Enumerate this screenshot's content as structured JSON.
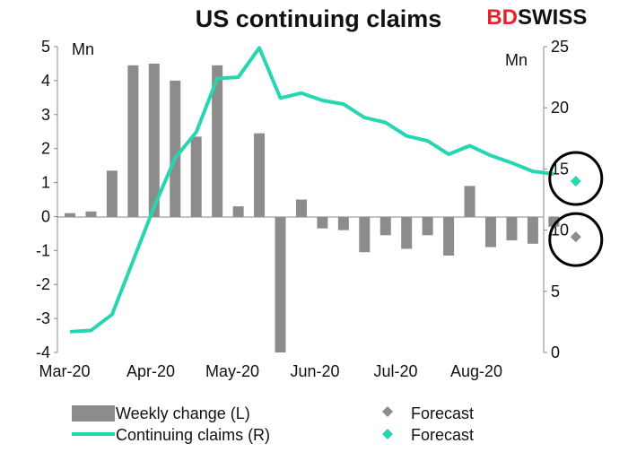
{
  "brand": {
    "logo_text": "BDSWISS",
    "logo_part1": "BD",
    "logo_part2": "SWISS",
    "accent_color": "#e8232b"
  },
  "chart_data": {
    "type": "bar+line",
    "title": "US continuing claims",
    "left_axis": {
      "unit": "Mn",
      "ticks": [
        "5",
        "4",
        "3",
        "2",
        "1",
        "0",
        "-1",
        "-2",
        "-3",
        "-4"
      ],
      "ylim": [
        -4,
        5
      ]
    },
    "right_axis": {
      "unit": "Mn",
      "ticks": [
        "25",
        "20",
        "15",
        "10",
        "5",
        "0"
      ],
      "ylim": [
        0,
        25
      ]
    },
    "x_ticks": [
      "Mar-20",
      "Apr-20",
      "May-20",
      "Jun-20",
      "Jul-20",
      "Aug-20"
    ],
    "weekly_change": {
      "name": "Weekly change (L)",
      "color": "#8c8c8c",
      "values": [
        0.1,
        0.15,
        1.35,
        4.45,
        4.5,
        4.0,
        2.35,
        4.45,
        0.3,
        2.45,
        -4.3,
        0.5,
        -0.35,
        -0.4,
        -1.05,
        -0.55,
        -0.95,
        -0.55,
        -1.15,
        0.9,
        -0.9,
        -0.7,
        -0.8,
        -0.3
      ],
      "forecast": -0.6
    },
    "continuing_claims": {
      "name": "Continuing claims (R)",
      "color": "#25d6b1",
      "values": [
        1.7,
        1.8,
        3.1,
        7.5,
        11.9,
        15.9,
        18.0,
        22.4,
        22.5,
        24.9,
        20.8,
        21.2,
        20.6,
        20.3,
        19.2,
        18.8,
        17.7,
        17.3,
        16.2,
        16.9,
        16.1,
        15.5,
        14.8,
        14.6
      ],
      "forecast": 14.0
    },
    "legend": [
      {
        "label": "Weekly change (L)",
        "marker": "bar"
      },
      {
        "label": "Forecast",
        "marker": "diamond-gray"
      },
      {
        "label": "Continuing claims (R)",
        "marker": "line"
      },
      {
        "label": "Forecast",
        "marker": "diamond-teal"
      }
    ],
    "annotations": [
      "circle around continuing claims forecast",
      "circle around weekly change forecast"
    ]
  }
}
